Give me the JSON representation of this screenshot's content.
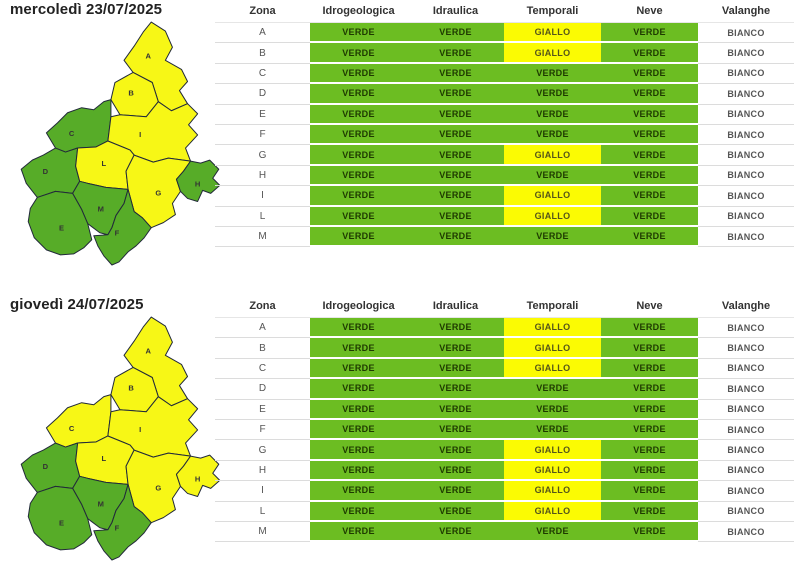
{
  "colors": {
    "table": {
      "VERDE": "#6cbd22",
      "GIALLO": "#fbfb03"
    },
    "map": {
      "VERDE": "#57ac28",
      "GIALLO": "#f7f716"
    },
    "text_on": {
      "VERDE": "#1e3a00",
      "GIALLO": "#55551a"
    },
    "valanghe_cell": "#ffffff"
  },
  "sections": [
    {
      "title": "mercoledì 23/07/2025",
      "map": {
        "zones": {
          "A": "GIALLO",
          "B": "GIALLO",
          "C": "VERDE",
          "D": "VERDE",
          "E": "VERDE",
          "F": "VERDE",
          "G": "GIALLO",
          "H": "VERDE",
          "I": "GIALLO",
          "L": "GIALLO",
          "M": "VERDE"
        }
      },
      "table": {
        "headers": [
          "Zona",
          "Idrogeologica",
          "Idraulica",
          "Temporali",
          "Neve",
          "Valanghe"
        ],
        "rows": [
          {
            "zona": "A",
            "levels": [
              "VERDE",
              "VERDE",
              "GIALLO",
              "VERDE"
            ],
            "valanghe": "BIANCO"
          },
          {
            "zona": "B",
            "levels": [
              "VERDE",
              "VERDE",
              "GIALLO",
              "VERDE"
            ],
            "valanghe": "BIANCO"
          },
          {
            "zona": "C",
            "levels": [
              "VERDE",
              "VERDE",
              "VERDE",
              "VERDE"
            ],
            "valanghe": "BIANCO"
          },
          {
            "zona": "D",
            "levels": [
              "VERDE",
              "VERDE",
              "VERDE",
              "VERDE"
            ],
            "valanghe": "BIANCO"
          },
          {
            "zona": "E",
            "levels": [
              "VERDE",
              "VERDE",
              "VERDE",
              "VERDE"
            ],
            "valanghe": "BIANCO"
          },
          {
            "zona": "F",
            "levels": [
              "VERDE",
              "VERDE",
              "VERDE",
              "VERDE"
            ],
            "valanghe": "BIANCO"
          },
          {
            "zona": "G",
            "levels": [
              "VERDE",
              "VERDE",
              "GIALLO",
              "VERDE"
            ],
            "valanghe": "BIANCO"
          },
          {
            "zona": "H",
            "levels": [
              "VERDE",
              "VERDE",
              "VERDE",
              "VERDE"
            ],
            "valanghe": "BIANCO"
          },
          {
            "zona": "I",
            "levels": [
              "VERDE",
              "VERDE",
              "GIALLO",
              "VERDE"
            ],
            "valanghe": "BIANCO"
          },
          {
            "zona": "L",
            "levels": [
              "VERDE",
              "VERDE",
              "GIALLO",
              "VERDE"
            ],
            "valanghe": "BIANCO"
          },
          {
            "zona": "M",
            "levels": [
              "VERDE",
              "VERDE",
              "VERDE",
              "VERDE"
            ],
            "valanghe": "BIANCO"
          }
        ]
      }
    },
    {
      "title": "giovedì 24/07/2025",
      "map": {
        "zones": {
          "A": "GIALLO",
          "B": "GIALLO",
          "C": "GIALLO",
          "D": "VERDE",
          "E": "VERDE",
          "F": "VERDE",
          "G": "GIALLO",
          "H": "GIALLO",
          "I": "GIALLO",
          "L": "GIALLO",
          "M": "VERDE"
        }
      },
      "table": {
        "headers": [
          "Zona",
          "Idrogeologica",
          "Idraulica",
          "Temporali",
          "Neve",
          "Valanghe"
        ],
        "rows": [
          {
            "zona": "A",
            "levels": [
              "VERDE",
              "VERDE",
              "GIALLO",
              "VERDE"
            ],
            "valanghe": "BIANCO"
          },
          {
            "zona": "B",
            "levels": [
              "VERDE",
              "VERDE",
              "GIALLO",
              "VERDE"
            ],
            "valanghe": "BIANCO"
          },
          {
            "zona": "C",
            "levels": [
              "VERDE",
              "VERDE",
              "GIALLO",
              "VERDE"
            ],
            "valanghe": "BIANCO"
          },
          {
            "zona": "D",
            "levels": [
              "VERDE",
              "VERDE",
              "VERDE",
              "VERDE"
            ],
            "valanghe": "BIANCO"
          },
          {
            "zona": "E",
            "levels": [
              "VERDE",
              "VERDE",
              "VERDE",
              "VERDE"
            ],
            "valanghe": "BIANCO"
          },
          {
            "zona": "F",
            "levels": [
              "VERDE",
              "VERDE",
              "VERDE",
              "VERDE"
            ],
            "valanghe": "BIANCO"
          },
          {
            "zona": "G",
            "levels": [
              "VERDE",
              "VERDE",
              "GIALLO",
              "VERDE"
            ],
            "valanghe": "BIANCO"
          },
          {
            "zona": "H",
            "levels": [
              "VERDE",
              "VERDE",
              "GIALLO",
              "VERDE"
            ],
            "valanghe": "BIANCO"
          },
          {
            "zona": "I",
            "levels": [
              "VERDE",
              "VERDE",
              "GIALLO",
              "VERDE"
            ],
            "valanghe": "BIANCO"
          },
          {
            "zona": "L",
            "levels": [
              "VERDE",
              "VERDE",
              "GIALLO",
              "VERDE"
            ],
            "valanghe": "BIANCO"
          },
          {
            "zona": "M",
            "levels": [
              "VERDE",
              "VERDE",
              "VERDE",
              "VERDE"
            ],
            "valanghe": "BIANCO"
          }
        ]
      }
    }
  ]
}
